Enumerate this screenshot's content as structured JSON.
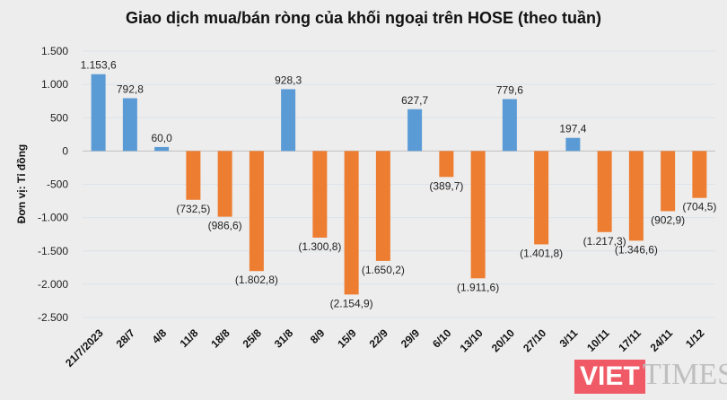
{
  "chart_data": {
    "type": "bar",
    "title": "Giao dịch mua/bán ròng của khối ngoại trên HOSE (theo tuần)",
    "ylabel": "Đơn vị: Tỉ đồng",
    "xlabel": "",
    "ylim": [
      -2500,
      1500
    ],
    "yticks": [
      1500,
      1000,
      500,
      0,
      -500,
      -1000,
      -1500,
      -2000,
      -2500
    ],
    "ytick_labels": [
      "1.500",
      "1.000",
      "500",
      "0",
      "-500",
      "-1.000",
      "-1.500",
      "-2.000",
      "-2.500"
    ],
    "grid": true,
    "categories": [
      "21/7/2023",
      "28/7",
      "4/8",
      "11/8",
      "18/8",
      "25/8",
      "31/8",
      "8/9",
      "15/9",
      "22/9",
      "29/9",
      "6/10",
      "13/10",
      "20/10",
      "27/10",
      "3/11",
      "10/11",
      "17/11",
      "24/11",
      "1/12"
    ],
    "values": [
      1153.6,
      792.8,
      60.0,
      -732.5,
      -986.6,
      -1802.8,
      928.3,
      -1300.8,
      -2154.9,
      -1650.2,
      627.7,
      -389.7,
      -1911.6,
      779.6,
      -1401.8,
      197.4,
      -1217.3,
      -1346.6,
      -902.9,
      -704.5
    ],
    "data_labels": [
      "1.153,6",
      "792,8",
      "60,0",
      "(732,5)",
      "(986,6)",
      "(1.802,8)",
      "928,3",
      "(1.300,8)",
      "(2.154,9)",
      "(1.650,2)",
      "627,7",
      "(389,7)",
      "(1.911,6)",
      "779,6",
      "(1.401,8)",
      "197,4",
      "(1.217,3)",
      "(1.346,6)",
      "(902,9)",
      "(704,5)"
    ],
    "colors": {
      "positive": "#5b9bd5",
      "negative": "#ed7d31"
    }
  },
  "logo": {
    "text1": "VIET",
    "text2": "TIMES"
  }
}
